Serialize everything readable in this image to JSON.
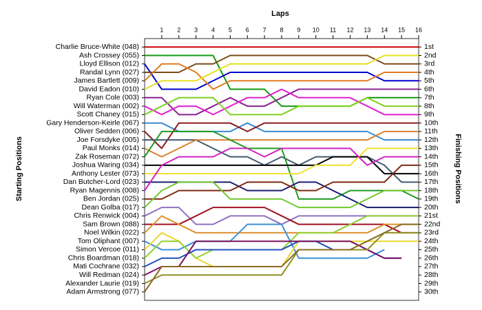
{
  "chart_data": {
    "type": "line",
    "x_label": "Laps",
    "y_label": "Starting Positions",
    "y2_label": "Finishing Positions",
    "x": [
      0,
      1,
      2,
      3,
      4,
      5,
      6,
      7,
      8,
      9,
      10,
      11,
      12,
      13,
      14,
      15,
      16
    ],
    "xlim": [
      0,
      16
    ],
    "xticks": [
      1,
      2,
      3,
      4,
      5,
      6,
      7,
      8,
      9,
      10,
      11,
      12,
      13,
      14,
      15,
      16
    ],
    "ylim": [
      31,
      0
    ],
    "yticks": [
      {
        "value": 1,
        "label": "1st"
      },
      {
        "value": 2,
        "label": "2nd"
      },
      {
        "value": 3,
        "label": "3rd"
      },
      {
        "value": 4,
        "label": "4th"
      },
      {
        "value": 5,
        "label": "5th"
      },
      {
        "value": 6,
        "label": "6th"
      },
      {
        "value": 7,
        "label": "7th"
      },
      {
        "value": 8,
        "label": "8th"
      },
      {
        "value": 9,
        "label": "9th"
      },
      {
        "value": 10,
        "label": "10th"
      },
      {
        "value": 11,
        "label": "11th"
      },
      {
        "value": 12,
        "label": "12th"
      },
      {
        "value": 13,
        "label": "13th"
      },
      {
        "value": 14,
        "label": "14th"
      },
      {
        "value": 15,
        "label": "15th"
      },
      {
        "value": 16,
        "label": "16th"
      },
      {
        "value": 17,
        "label": "17th"
      },
      {
        "value": 18,
        "label": "18th"
      },
      {
        "value": 19,
        "label": "19th"
      },
      {
        "value": 20,
        "label": "20th"
      },
      {
        "value": 21,
        "label": "21st"
      },
      {
        "value": 22,
        "label": "22nd"
      },
      {
        "value": 23,
        "label": "23rd"
      },
      {
        "value": 24,
        "label": "24th"
      },
      {
        "value": 25,
        "label": "25th"
      },
      {
        "value": 26,
        "label": "26th"
      },
      {
        "value": 27,
        "label": "27th"
      },
      {
        "value": 28,
        "label": "28th"
      },
      {
        "value": 29,
        "label": "29th"
      },
      {
        "value": 30,
        "label": "30th"
      }
    ],
    "series": [
      {
        "name": "Charlie Bruce-White (048)",
        "color": "#cc0000",
        "values": [
          1,
          1,
          1,
          1,
          1,
          1,
          1,
          1,
          1,
          1,
          1,
          1,
          1,
          1,
          1,
          1,
          1
        ]
      },
      {
        "name": "Ash Crossey (055)",
        "color": "#119911",
        "values": [
          2,
          2,
          2,
          2,
          2,
          6,
          6,
          6,
          8,
          8,
          8,
          8,
          8,
          7,
          7,
          7,
          7
        ]
      },
      {
        "name": "Lloyd Ellison (012)",
        "color": "#0000cc",
        "values": [
          3,
          6,
          6,
          6,
          5,
          4,
          4,
          4,
          4,
          4,
          4,
          4,
          4,
          4,
          5,
          5,
          5
        ]
      },
      {
        "name": "Randal Lynn (027)",
        "color": "#7a4a1a",
        "values": [
          4,
          4,
          4,
          3,
          3,
          2,
          2,
          2,
          2,
          2,
          2,
          2,
          2,
          2,
          3,
          3,
          3
        ]
      },
      {
        "name": "James Bartlett (009)",
        "color": "#e07b20",
        "values": [
          5,
          3,
          3,
          4,
          6,
          5,
          5,
          5,
          5,
          5,
          5,
          5,
          5,
          5,
          4,
          4,
          4
        ]
      },
      {
        "name": "David Eadon (010)",
        "color": "#e8e020",
        "values": [
          6,
          5,
          5,
          5,
          4,
          3,
          3,
          3,
          3,
          3,
          3,
          3,
          3,
          3,
          2,
          2,
          2
        ]
      },
      {
        "name": "Ryan Cole (003)",
        "color": "#8a2090",
        "values": [
          7,
          7,
          9,
          9,
          8,
          7,
          8,
          8,
          7,
          6,
          6,
          6,
          6,
          6,
          6,
          6,
          6
        ]
      },
      {
        "name": "Will Waterman (002)",
        "color": "#e020d0",
        "values": [
          8,
          9,
          8,
          8,
          9,
          8,
          7,
          7,
          6,
          7,
          7,
          7,
          7,
          8,
          9,
          9,
          9
        ]
      },
      {
        "name": "Scott Chaney (015)",
        "color": "#80d020",
        "values": [
          9,
          8,
          7,
          7,
          7,
          9,
          9,
          9,
          9,
          8,
          8,
          8,
          8,
          7,
          8,
          8,
          8
        ]
      },
      {
        "name": "Gary Henderson-Keirle (067)",
        "color": "#3a8ad0",
        "values": [
          10,
          10,
          11,
          11,
          11,
          11,
          10,
          11,
          11,
          11,
          11,
          11,
          11,
          11,
          12,
          12,
          12
        ]
      },
      {
        "name": "Oliver Sedden (006)",
        "color": "#8a1a1a",
        "values": [
          11,
          13,
          10,
          10,
          10,
          10,
          11,
          10,
          10,
          10,
          10,
          10,
          10,
          10,
          10,
          10,
          10
        ]
      },
      {
        "name": "Joe Forsdyke (005)",
        "color": "#405a70",
        "values": [
          12,
          12,
          12,
          12,
          13,
          14,
          14,
          15,
          14,
          15,
          14,
          14,
          14,
          14,
          15,
          17,
          17
        ]
      },
      {
        "name": "Paul Monks (014)",
        "color": "#d88030",
        "values": [
          13,
          14,
          13,
          12,
          12,
          12,
          12,
          12,
          12,
          12,
          12,
          12,
          12,
          12,
          11,
          11,
          11
        ]
      },
      {
        "name": "Zak Roseman (072)",
        "color": "#209a20",
        "values": [
          14,
          11,
          11,
          11,
          11,
          12,
          13,
          13,
          13,
          19,
          19,
          19,
          18,
          18,
          18,
          18,
          19
        ]
      },
      {
        "name": "Joshua Waring (034)",
        "color": "#000000",
        "values": [
          15,
          15,
          15,
          15,
          15,
          15,
          15,
          15,
          15,
          15,
          15,
          14,
          14,
          14,
          16,
          16,
          16
        ]
      },
      {
        "name": "Anthony Lester (073)",
        "color": "#f0e030",
        "values": [
          16,
          16,
          16,
          16,
          16,
          16,
          16,
          16,
          16,
          16,
          15,
          15,
          15,
          13,
          13,
          13,
          13
        ]
      },
      {
        "name": "Dan Butcher-Lord (023)",
        "color": "#1a1a70",
        "values": [
          17,
          17,
          17,
          17,
          17,
          17,
          18,
          18,
          18,
          17,
          17,
          18,
          19,
          20,
          20,
          20,
          20
        ]
      },
      {
        "name": "Ryan Magennis (008)",
        "color": "#d020c0",
        "values": [
          18,
          15,
          14,
          14,
          14,
          13,
          13,
          14,
          13,
          13,
          13,
          13,
          13,
          15,
          14,
          14,
          14
        ]
      },
      {
        "name": "Ben Jordan (025)",
        "color": "#802a10",
        "values": [
          19,
          19,
          18,
          18,
          18,
          18,
          17,
          17,
          17,
          18,
          18,
          17,
          17,
          17,
          17,
          15,
          15
        ]
      },
      {
        "name": "Dean Golba (017)",
        "color": "#70c830",
        "values": [
          20,
          18,
          17,
          17,
          17,
          19,
          19,
          19,
          19,
          20,
          20,
          20,
          20,
          19,
          18,
          18,
          18
        ]
      },
      {
        "name": "Chris Renwick (004)",
        "color": "#9070c0",
        "values": [
          21,
          20,
          20,
          22,
          22,
          21,
          21,
          21,
          22,
          21,
          21,
          21,
          21,
          21,
          21,
          21,
          21
        ]
      },
      {
        "name": "Sam Brown (088)",
        "color": "#a01020",
        "values": [
          22,
          22,
          22,
          21,
          20,
          20,
          20,
          20,
          21,
          22,
          22,
          22,
          22,
          22,
          22,
          23,
          23
        ]
      },
      {
        "name": "Noel Wilkin (022)",
        "color": "#e09030",
        "values": [
          23,
          21,
          22,
          23,
          23,
          23,
          23,
          23,
          23,
          23,
          23,
          23,
          23,
          23,
          22,
          22,
          22
        ]
      },
      {
        "name": "Tom Oliphant (007)",
        "color": "#3a90d8",
        "values": [
          24,
          25,
          25,
          24,
          24,
          24,
          22,
          22,
          22,
          26,
          26,
          26,
          26,
          26,
          25,
          null,
          null
        ]
      },
      {
        "name": "Simon Vercoe (011)",
        "color": "#e8d830",
        "values": [
          25,
          23,
          24,
          26,
          27,
          27,
          27,
          27,
          27,
          24,
          24,
          24,
          24,
          24,
          24,
          24,
          24
        ]
      },
      {
        "name": "Chris Boardman (018)",
        "color": "#90d030",
        "values": [
          26,
          24,
          24,
          26,
          25,
          25,
          25,
          25,
          25,
          23,
          23,
          23,
          22,
          21,
          21,
          21,
          21
        ]
      },
      {
        "name": "Mati Cochrane (032)",
        "color": "#2050c0",
        "values": [
          27,
          26,
          26,
          25,
          25,
          25,
          25,
          25,
          25,
          24,
          24,
          25,
          25,
          25,
          26,
          26,
          null
        ]
      },
      {
        "name": "Will Redman (024)",
        "color": "#7a1060",
        "values": [
          28,
          27,
          27,
          24,
          24,
          24,
          24,
          24,
          24,
          24,
          24,
          24,
          24,
          25,
          26,
          26,
          null
        ]
      },
      {
        "name": "Alexander Laurie (019)",
        "color": "#909020",
        "values": [
          29,
          28,
          28,
          28,
          28,
          28,
          28,
          28,
          28,
          25,
          25,
          25,
          25,
          25,
          23,
          23,
          23
        ]
      },
      {
        "name": "Adam Armstrong (077)",
        "color": "#8a6a20",
        "values": [
          30,
          27,
          27,
          27,
          27,
          27,
          27,
          27,
          27,
          25,
          25,
          25,
          25,
          24,
          23,
          22,
          22
        ]
      }
    ]
  }
}
